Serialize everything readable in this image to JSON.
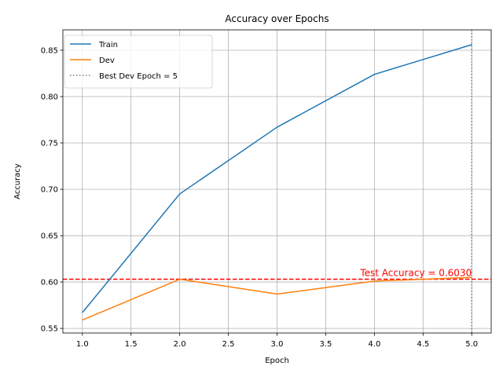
{
  "chart_data": {
    "type": "line",
    "title": "Accuracy over Epochs",
    "xlabel": "Epoch",
    "ylabel": "Accuracy",
    "xlim": [
      0.8,
      5.2
    ],
    "ylim": [
      0.545,
      0.872
    ],
    "xticks": [
      1.0,
      1.5,
      2.0,
      2.5,
      3.0,
      3.5,
      4.0,
      4.5,
      5.0
    ],
    "xtick_labels": [
      "1.0",
      "1.5",
      "2.0",
      "2.5",
      "3.0",
      "3.5",
      "4.0",
      "4.5",
      "5.0"
    ],
    "yticks": [
      0.55,
      0.6,
      0.65,
      0.7,
      0.75,
      0.8,
      0.85
    ],
    "ytick_labels": [
      "0.55",
      "0.60",
      "0.65",
      "0.70",
      "0.75",
      "0.80",
      "0.85"
    ],
    "grid": true,
    "legend_position": "top-left",
    "x": [
      1,
      2,
      3,
      4,
      5
    ],
    "series": [
      {
        "name": "Train",
        "values": [
          0.567,
          0.695,
          0.767,
          0.824,
          0.856
        ],
        "color": "#1f77b4"
      },
      {
        "name": "Dev",
        "values": [
          0.559,
          0.603,
          0.587,
          0.601,
          0.605
        ],
        "color": "#ff7f0e"
      }
    ],
    "reference_lines": [
      {
        "orientation": "vertical",
        "x": 5,
        "name": "Best Dev Epoch = 5",
        "color": "#808080",
        "style": "dotted"
      },
      {
        "orientation": "horizontal",
        "y": 0.603,
        "color": "#ff0000",
        "style": "dashed"
      }
    ],
    "annotations": [
      {
        "text": "Test Accuracy = 0.6030",
        "x": 5,
        "y": 0.603,
        "color": "#ff0000"
      }
    ]
  }
}
